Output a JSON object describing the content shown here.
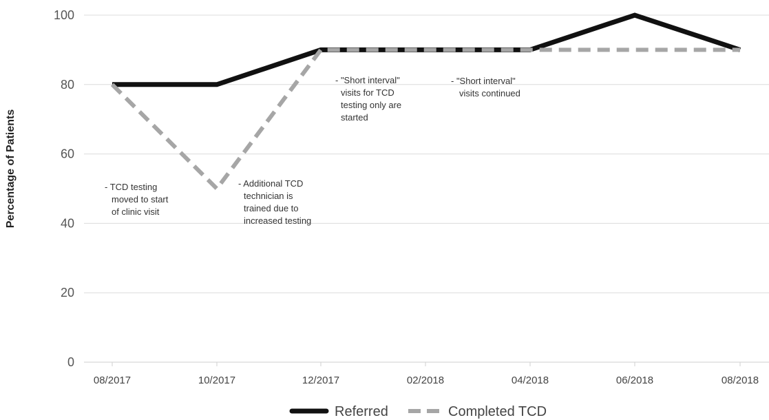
{
  "chart_data": {
    "type": "line",
    "title": "",
    "xlabel": "",
    "ylabel": "Percentage of Patients",
    "categories": [
      "08/2017",
      "10/2017",
      "12/2017",
      "02/2018",
      "04/2018",
      "06/2018",
      "08/2018"
    ],
    "ylim": [
      0,
      100
    ],
    "yticks": [
      0,
      20,
      40,
      60,
      80,
      100
    ],
    "grid": true,
    "legend_position": "bottom",
    "series": [
      {
        "name": "Referred",
        "values": [
          80,
          80,
          90,
          90,
          90,
          100,
          90
        ],
        "color": "#111111",
        "style": "solid"
      },
      {
        "name": "Completed TCD",
        "values": [
          80,
          50,
          90,
          90,
          90,
          90,
          90
        ],
        "color": "#a6a6a6",
        "style": "dashed"
      }
    ],
    "annotations": [
      {
        "lines": [
          "- TCD testing",
          "moved to start",
          "of clinic visit"
        ]
      },
      {
        "lines": [
          "- Additional TCD",
          "technician is",
          "trained due to",
          "increased testing"
        ]
      },
      {
        "lines": [
          "- \"Short interval\"",
          "visits for TCD",
          "testing only are",
          "started"
        ]
      },
      {
        "lines": [
          "- \"Short interval\"",
          "visits continued"
        ]
      }
    ]
  }
}
